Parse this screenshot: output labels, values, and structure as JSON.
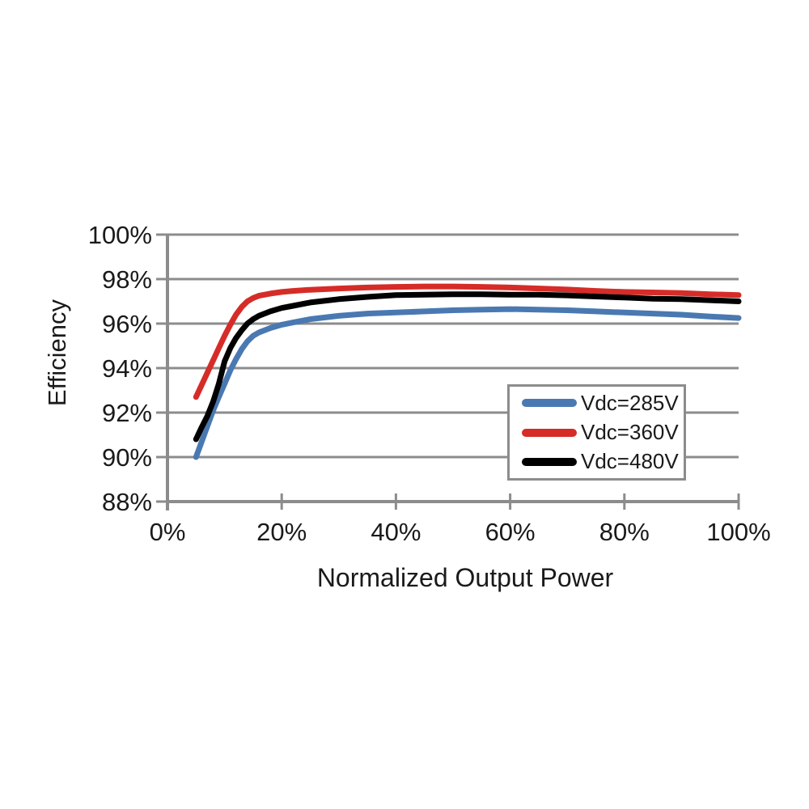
{
  "chart_data": {
    "type": "line",
    "title": "",
    "xlabel": "Normalized Output Power",
    "ylabel": "Efficiency",
    "xlim": [
      0,
      100
    ],
    "ylim": [
      88,
      100
    ],
    "grid": "horizontal",
    "legend_position": "inside-right",
    "x_tick_values": [
      0,
      20,
      40,
      60,
      80,
      100
    ],
    "x_tick_labels": [
      "0%",
      "20%",
      "40%",
      "60%",
      "80%",
      "100%"
    ],
    "y_tick_values": [
      100,
      98,
      96,
      94,
      92,
      90,
      88
    ],
    "y_tick_labels": [
      "100%",
      "98%",
      "96%",
      "94%",
      "92%",
      "90%",
      "88%"
    ],
    "x": [
      5,
      6,
      7,
      8,
      9,
      10,
      11,
      12,
      13,
      14,
      15,
      16,
      18,
      20,
      22,
      25,
      30,
      35,
      40,
      45,
      50,
      55,
      60,
      65,
      70,
      75,
      80,
      85,
      90,
      95,
      100
    ],
    "series": [
      {
        "name": "Vdc=285V",
        "color": "#4a79b2",
        "values": [
          90.0,
          90.7,
          91.4,
          92.1,
          92.7,
          93.3,
          93.9,
          94.4,
          94.85,
          95.2,
          95.45,
          95.6,
          95.8,
          95.95,
          96.05,
          96.2,
          96.35,
          96.45,
          96.5,
          96.55,
          96.6,
          96.63,
          96.65,
          96.63,
          96.6,
          96.55,
          96.5,
          96.45,
          96.4,
          96.32,
          96.25
        ]
      },
      {
        "name": "Vdc=360V",
        "color": "#d62c28",
        "values": [
          92.7,
          93.25,
          93.8,
          94.35,
          94.9,
          95.45,
          95.95,
          96.4,
          96.75,
          97.0,
          97.15,
          97.25,
          97.35,
          97.42,
          97.47,
          97.52,
          97.58,
          97.62,
          97.65,
          97.67,
          97.67,
          97.65,
          97.62,
          97.58,
          97.53,
          97.47,
          97.42,
          97.4,
          97.37,
          97.32,
          97.28
        ]
      },
      {
        "name": "Vdc=480V",
        "color": "#000000",
        "values": [
          90.8,
          91.35,
          91.85,
          92.5,
          93.3,
          94.3,
          94.9,
          95.35,
          95.7,
          96.0,
          96.2,
          96.35,
          96.55,
          96.7,
          96.8,
          96.95,
          97.1,
          97.2,
          97.28,
          97.3,
          97.32,
          97.32,
          97.3,
          97.3,
          97.27,
          97.22,
          97.17,
          97.12,
          97.1,
          97.05,
          97.0
        ]
      }
    ]
  },
  "colors": {
    "grid": "#8c8c8c",
    "axis": "#8c8c8c",
    "legend_border": "#8c8c8c",
    "text": "#1a1a1a",
    "background": "#ffffff"
  }
}
